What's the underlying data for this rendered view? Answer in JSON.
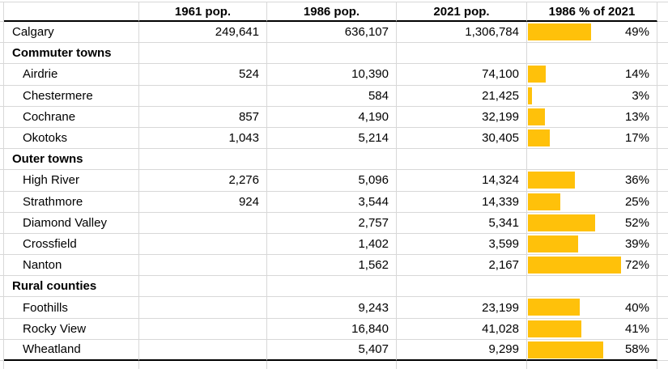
{
  "colors": {
    "bar_fill": "#FFC10A",
    "gridline": "#D8D8D8",
    "heavy_border": "#000000",
    "text": "#000000",
    "background": "#FFFFFF"
  },
  "chart_data": {
    "type": "table",
    "columns": [
      "",
      "1961 pop.",
      "1986 pop.",
      "2021 pop.",
      "1986 % of 2021"
    ],
    "bar_column": "1986 % of 2021",
    "bar_axis_range": [
      0,
      100
    ],
    "rows": [
      {
        "kind": "data",
        "indent": false,
        "label": "Calgary",
        "pop_1961": "249,641",
        "pop_1986": "636,107",
        "pop_2021": "1,306,784",
        "pct": 49,
        "pct_label": "49%"
      },
      {
        "kind": "section",
        "label": "Commuter towns"
      },
      {
        "kind": "data",
        "indent": true,
        "label": "Airdrie",
        "pop_1961": "524",
        "pop_1986": "10,390",
        "pop_2021": "74,100",
        "pct": 14,
        "pct_label": "14%"
      },
      {
        "kind": "data",
        "indent": true,
        "label": "Chestermere",
        "pop_1961": "",
        "pop_1986": "584",
        "pop_2021": "21,425",
        "pct": 3,
        "pct_label": "3%"
      },
      {
        "kind": "data",
        "indent": true,
        "label": "Cochrane",
        "pop_1961": "857",
        "pop_1986": "4,190",
        "pop_2021": "32,199",
        "pct": 13,
        "pct_label": "13%"
      },
      {
        "kind": "data",
        "indent": true,
        "label": "Okotoks",
        "pop_1961": "1,043",
        "pop_1986": "5,214",
        "pop_2021": "30,405",
        "pct": 17,
        "pct_label": "17%"
      },
      {
        "kind": "section",
        "label": "Outer towns"
      },
      {
        "kind": "data",
        "indent": true,
        "label": "High River",
        "pop_1961": "2,276",
        "pop_1986": "5,096",
        "pop_2021": "14,324",
        "pct": 36,
        "pct_label": "36%"
      },
      {
        "kind": "data",
        "indent": true,
        "label": "Strathmore",
        "pop_1961": "924",
        "pop_1986": "3,544",
        "pop_2021": "14,339",
        "pct": 25,
        "pct_label": "25%"
      },
      {
        "kind": "data",
        "indent": true,
        "label": "Diamond Valley",
        "pop_1961": "",
        "pop_1986": "2,757",
        "pop_2021": "5,341",
        "pct": 52,
        "pct_label": "52%"
      },
      {
        "kind": "data",
        "indent": true,
        "label": "Crossfield",
        "pop_1961": "",
        "pop_1986": "1,402",
        "pop_2021": "3,599",
        "pct": 39,
        "pct_label": "39%"
      },
      {
        "kind": "data",
        "indent": true,
        "label": "Nanton",
        "pop_1961": "",
        "pop_1986": "1,562",
        "pop_2021": "2,167",
        "pct": 72,
        "pct_label": "72%"
      },
      {
        "kind": "section",
        "label": "Rural counties"
      },
      {
        "kind": "data",
        "indent": true,
        "label": "Foothills",
        "pop_1961": "",
        "pop_1986": "9,243",
        "pop_2021": "23,199",
        "pct": 40,
        "pct_label": "40%"
      },
      {
        "kind": "data",
        "indent": true,
        "label": "Rocky View",
        "pop_1961": "",
        "pop_1986": "16,840",
        "pop_2021": "41,028",
        "pct": 41,
        "pct_label": "41%"
      },
      {
        "kind": "data",
        "indent": true,
        "label": "Wheatland",
        "pop_1961": "",
        "pop_1986": "5,407",
        "pop_2021": "9,299",
        "pct": 58,
        "pct_label": "58%"
      }
    ]
  }
}
